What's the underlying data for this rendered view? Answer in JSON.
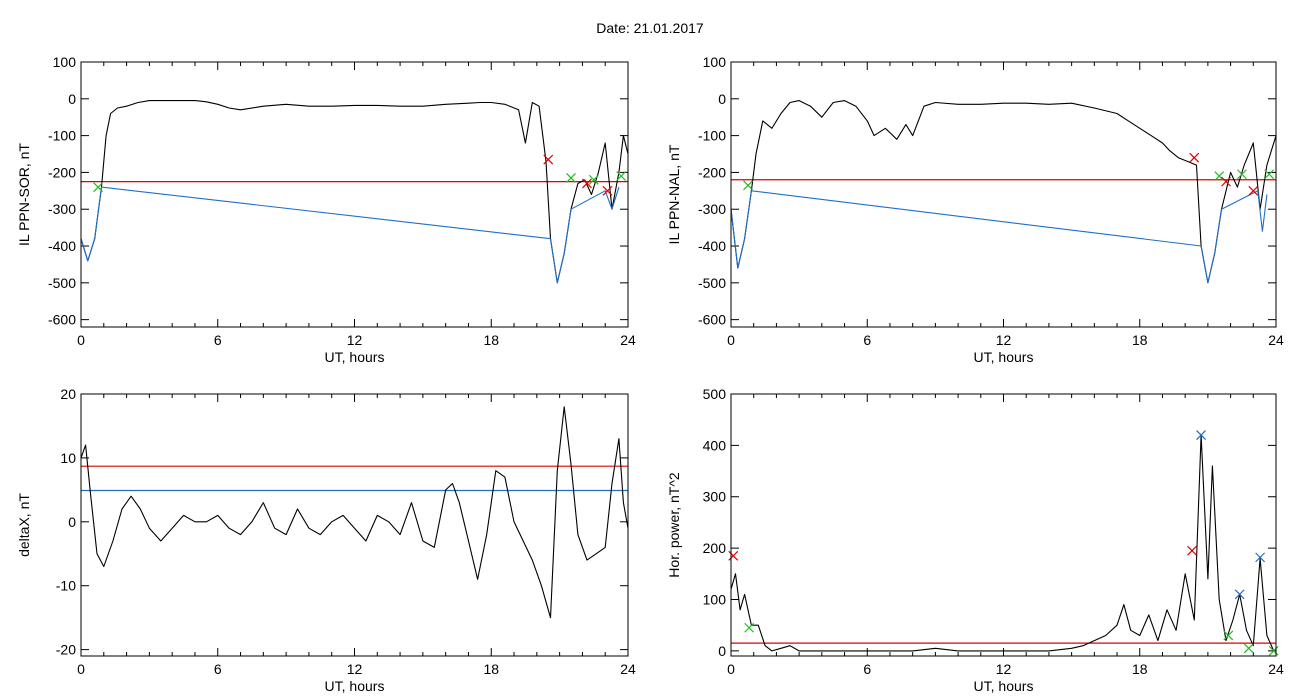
{
  "title": "Date:  21.01.2017",
  "colors": {
    "signal": "#000000",
    "threshold_red": "#e00000",
    "threshold_blue": "#1f6fc8",
    "marker_red": "#e00000",
    "marker_green": "#22bb22",
    "marker_blue": "#1f6fc8"
  },
  "chart_data": [
    {
      "type": "line",
      "xlabel": "UT, hours",
      "ylabel": "IL PPN-SOR, nT",
      "xlim": [
        0,
        24
      ],
      "ylim": [
        -620,
        100
      ],
      "xticks": [
        0,
        6,
        12,
        18,
        24
      ],
      "yticks": [
        100,
        0,
        -100,
        -200,
        -300,
        -400,
        -500,
        -600
      ],
      "grid": false,
      "series": [
        {
          "color": "#000000",
          "x": [
            0,
            0.3,
            0.6,
            0.9,
            1.1,
            1.3,
            1.6,
            2,
            2.5,
            3,
            4,
            5,
            5.5,
            6,
            6.5,
            7,
            8,
            9,
            10,
            11,
            12,
            13,
            14,
            15,
            16,
            17,
            17.5,
            18,
            18.6,
            19.2,
            19.5,
            19.8,
            20.1,
            20.4,
            20.6,
            20.9,
            21.2,
            21.5,
            21.8,
            22.1,
            22.4,
            22.7,
            23.0,
            23.3,
            23.6,
            23.8,
            24
          ],
          "y": [
            -380,
            -440,
            -380,
            -240,
            -100,
            -40,
            -25,
            -20,
            -10,
            -5,
            -5,
            -5,
            -8,
            -15,
            -25,
            -30,
            -20,
            -15,
            -20,
            -20,
            -18,
            -18,
            -20,
            -20,
            -15,
            -12,
            -10,
            -10,
            -15,
            -30,
            -120,
            -10,
            -20,
            -170,
            -380,
            -500,
            -420,
            -300,
            -230,
            -220,
            -260,
            -200,
            -120,
            -300,
            -200,
            -100,
            -150
          ]
        },
        {
          "color": "#1f6fc8",
          "x": [
            0,
            0.3,
            0.6,
            0.9,
            20.6,
            20.9,
            21.2,
            21.5,
            23.0,
            23.3,
            23.6
          ],
          "y": [
            -380,
            -440,
            -380,
            -240,
            -380,
            -500,
            -420,
            -300,
            -250,
            -300,
            -240
          ]
        }
      ],
      "thresholds": [
        {
          "y": -225,
          "color": "#e00000"
        }
      ],
      "markers": [
        {
          "x": 0.75,
          "y": -240,
          "color": "#22bb22"
        },
        {
          "x": 20.5,
          "y": -165,
          "color": "#e00000"
        },
        {
          "x": 21.5,
          "y": -215,
          "color": "#22bb22"
        },
        {
          "x": 22.2,
          "y": -230,
          "color": "#e00000"
        },
        {
          "x": 22.5,
          "y": -220,
          "color": "#22bb22"
        },
        {
          "x": 23.1,
          "y": -250,
          "color": "#e00000"
        },
        {
          "x": 23.7,
          "y": -210,
          "color": "#22bb22"
        }
      ]
    },
    {
      "type": "line",
      "xlabel": "UT, hours",
      "ylabel": "IL PPN-NAL, nT",
      "xlim": [
        0,
        24
      ],
      "ylim": [
        -620,
        100
      ],
      "xticks": [
        0,
        6,
        12,
        18,
        24
      ],
      "yticks": [
        100,
        0,
        -100,
        -200,
        -300,
        -400,
        -500,
        -600
      ],
      "grid": false,
      "series": [
        {
          "color": "#000000",
          "x": [
            0,
            0.3,
            0.6,
            0.9,
            1.1,
            1.4,
            1.8,
            2.2,
            2.6,
            3,
            3.5,
            4,
            4.5,
            5,
            5.5,
            6,
            6.3,
            6.8,
            7.3,
            7.7,
            8,
            8.5,
            9,
            10,
            11,
            12,
            13,
            14,
            15,
            16,
            17,
            17.5,
            18,
            18.5,
            19,
            19.3,
            19.7,
            20.1,
            20.5,
            20.7,
            21,
            21.3,
            21.6,
            22,
            22.3,
            22.6,
            23,
            23.3,
            23.6,
            24
          ],
          "y": [
            -300,
            -460,
            -380,
            -250,
            -150,
            -60,
            -80,
            -40,
            -10,
            -5,
            -20,
            -50,
            -10,
            -5,
            -20,
            -60,
            -100,
            -80,
            -110,
            -70,
            -100,
            -20,
            -10,
            -15,
            -15,
            -12,
            -12,
            -15,
            -12,
            -25,
            -40,
            -60,
            -80,
            -100,
            -120,
            -140,
            -160,
            -170,
            -180,
            -400,
            -500,
            -420,
            -300,
            -200,
            -240,
            -180,
            -120,
            -300,
            -180,
            -100
          ]
        },
        {
          "color": "#1f6fc8",
          "x": [
            0,
            0.3,
            0.6,
            0.9,
            20.7,
            21.0,
            21.3,
            21.6,
            23.2,
            23.4,
            23.6
          ],
          "y": [
            -300,
            -460,
            -380,
            -250,
            -400,
            -500,
            -420,
            -300,
            -250,
            -360,
            -260
          ]
        }
      ],
      "thresholds": [
        {
          "y": -220,
          "color": "#e00000"
        }
      ],
      "markers": [
        {
          "x": 0.75,
          "y": -235,
          "color": "#22bb22"
        },
        {
          "x": 20.4,
          "y": -160,
          "color": "#e00000"
        },
        {
          "x": 21.5,
          "y": -210,
          "color": "#22bb22"
        },
        {
          "x": 21.8,
          "y": -225,
          "color": "#e00000"
        },
        {
          "x": 22.5,
          "y": -205,
          "color": "#22bb22"
        },
        {
          "x": 23.0,
          "y": -250,
          "color": "#e00000"
        },
        {
          "x": 23.7,
          "y": -205,
          "color": "#22bb22"
        }
      ]
    },
    {
      "type": "line",
      "xlabel": "UT, hours",
      "ylabel": "deltaX, nT",
      "xlim": [
        0,
        24
      ],
      "ylim": [
        -21,
        20
      ],
      "xticks": [
        0,
        6,
        12,
        18,
        24
      ],
      "yticks": [
        20,
        10,
        0,
        -10,
        -20
      ],
      "grid": false,
      "series": [
        {
          "color": "#000000",
          "x": [
            0,
            0.2,
            0.4,
            0.7,
            1.0,
            1.4,
            1.8,
            2.2,
            2.6,
            3.0,
            3.5,
            4.0,
            4.5,
            5.0,
            5.5,
            6.0,
            6.5,
            7.0,
            7.5,
            8.0,
            8.5,
            9.0,
            9.5,
            10.0,
            10.5,
            11.0,
            11.5,
            12.0,
            12.5,
            13.0,
            13.5,
            14.0,
            14.5,
            15.0,
            15.5,
            16.0,
            16.3,
            16.6,
            17.0,
            17.4,
            17.8,
            18.2,
            18.6,
            19.0,
            19.4,
            19.8,
            20.2,
            20.6,
            20.9,
            21.2,
            21.5,
            21.8,
            22.2,
            22.6,
            23.0,
            23.3,
            23.6,
            23.8,
            24.0
          ],
          "y": [
            10,
            12,
            5,
            -5,
            -7,
            -3,
            2,
            4,
            2,
            -1,
            -3,
            -1,
            1,
            0,
            0,
            1,
            -1,
            -2,
            0,
            3,
            -1,
            -2,
            2,
            -1,
            -2,
            0,
            1,
            -1,
            -3,
            1,
            0,
            -2,
            3,
            -3,
            -4,
            5,
            6,
            3,
            -3,
            -9,
            -2,
            8,
            7,
            0,
            -3,
            -6,
            -10,
            -15,
            8,
            18,
            9,
            -2,
            -6,
            -5,
            -4,
            6,
            13,
            3,
            -1
          ]
        }
      ],
      "thresholds": [
        {
          "y": 8.7,
          "color": "#e00000"
        },
        {
          "y": 4.9,
          "color": "#1f6fc8"
        }
      ],
      "markers": []
    },
    {
      "type": "line",
      "xlabel": "UT, hours",
      "ylabel": "Hor. power, nT^2",
      "xlim": [
        0,
        24
      ],
      "ylim": [
        -10,
        500
      ],
      "xticks": [
        0,
        6,
        12,
        18,
        24
      ],
      "yticks": [
        500,
        400,
        300,
        200,
        100,
        0
      ],
      "grid": false,
      "series": [
        {
          "color": "#000000",
          "x": [
            0,
            0.2,
            0.4,
            0.6,
            0.9,
            1.2,
            1.5,
            1.8,
            2.2,
            2.6,
            3.0,
            4,
            5,
            6,
            7,
            8,
            9,
            10,
            11,
            12,
            13,
            14,
            15,
            15.5,
            16,
            16.5,
            17,
            17.3,
            17.6,
            18,
            18.4,
            18.8,
            19.2,
            19.6,
            20,
            20.4,
            20.7,
            21.0,
            21.2,
            21.5,
            21.8,
            22.1,
            22.4,
            22.7,
            23.0,
            23.3,
            23.6,
            23.9
          ],
          "y": [
            120,
            150,
            80,
            110,
            50,
            50,
            10,
            0,
            5,
            10,
            0,
            0,
            0,
            0,
            0,
            0,
            5,
            0,
            0,
            0,
            0,
            0,
            5,
            10,
            20,
            30,
            50,
            90,
            40,
            30,
            70,
            20,
            80,
            40,
            150,
            60,
            420,
            140,
            360,
            100,
            20,
            60,
            110,
            40,
            10,
            180,
            30,
            0
          ]
        }
      ],
      "thresholds": [
        {
          "y": 15,
          "color": "#e00000"
        }
      ],
      "markers": [
        {
          "x": 0.1,
          "y": 185,
          "color": "#e00000"
        },
        {
          "x": 0.8,
          "y": 45,
          "color": "#22bb22"
        },
        {
          "x": 20.3,
          "y": 195,
          "color": "#e00000"
        },
        {
          "x": 20.7,
          "y": 420,
          "color": "#1f6fc8"
        },
        {
          "x": 21.9,
          "y": 30,
          "color": "#22bb22"
        },
        {
          "x": 22.4,
          "y": 110,
          "color": "#1f6fc8"
        },
        {
          "x": 22.8,
          "y": 5,
          "color": "#22bb22"
        },
        {
          "x": 23.3,
          "y": 182,
          "color": "#1f6fc8"
        },
        {
          "x": 23.9,
          "y": 0,
          "color": "#22bb22"
        }
      ]
    }
  ]
}
